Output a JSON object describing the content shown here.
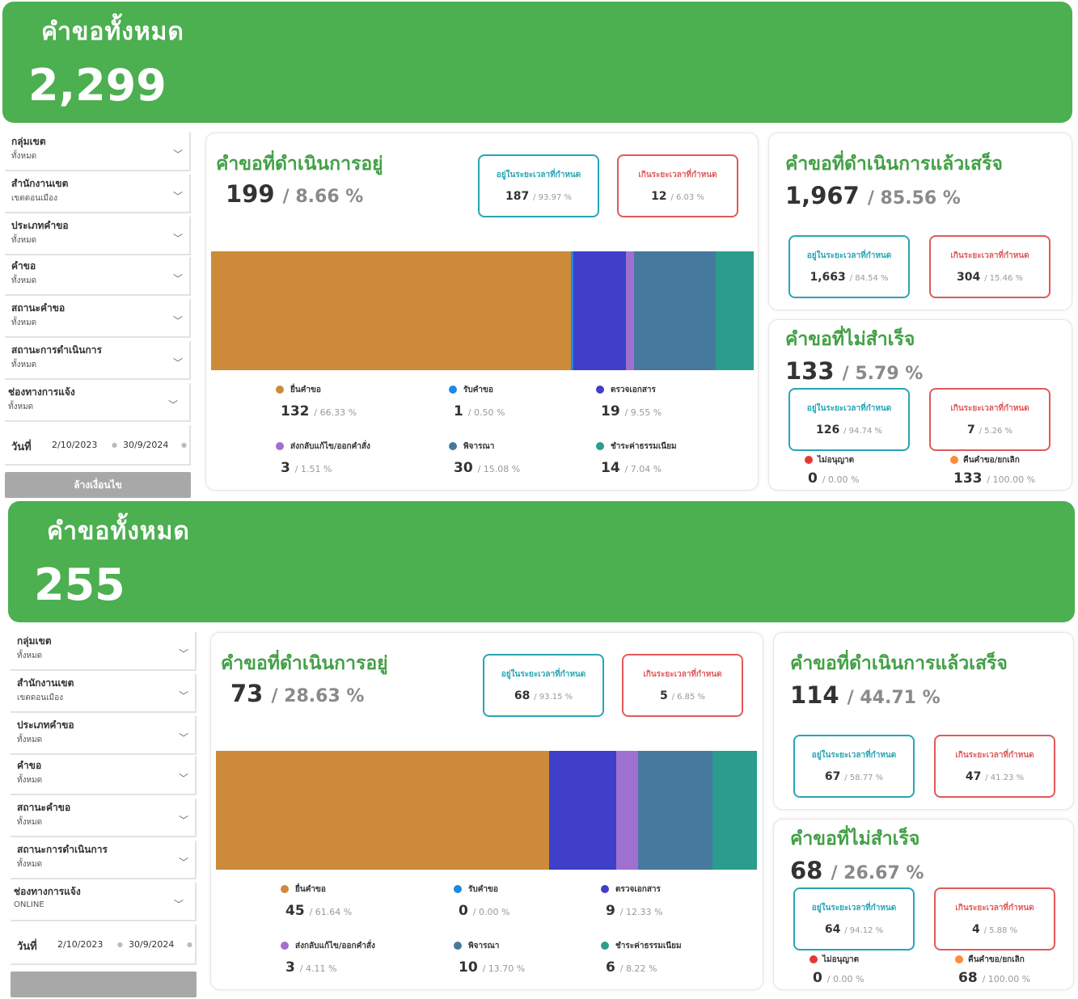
{
  "colors": {
    "banner": "#4caf50",
    "title_green": "#43a047",
    "teal": "#26a6b5",
    "red": "#e05a5a",
    "status": [
      "#cd8a3a",
      "#1e88e5",
      "#3f3fc9",
      "#a070d0",
      "#46799e",
      "#2a9d8f"
    ],
    "rejected_dot": "#e53935",
    "cancel_dot": "#fb8c3c"
  },
  "dashboards": [
    {
      "banner": {
        "title": "คำขอทั้งหมด",
        "total": "2,299"
      },
      "filters": [
        {
          "label": "กลุ่มเขต",
          "value": "ทั้งหมด"
        },
        {
          "label": "สำนักงานเขต",
          "value": "เขตดอนเมือง"
        },
        {
          "label": "ประเภทคำขอ",
          "value": "ทั้งหมด"
        },
        {
          "label": "คำขอ",
          "value": "ทั้งหมด"
        },
        {
          "label": "สถานะคำขอ",
          "value": "ทั้งหมด"
        },
        {
          "label": "สถานะการดำเนินการ",
          "value": "ทั้งหมด"
        },
        {
          "label": "ช่องทางการแจ้ง",
          "value": "ทั้งหมด"
        }
      ],
      "date": {
        "label": "วันที่",
        "from": "2/10/2023",
        "to": "30/9/2024"
      },
      "clear_label": "ล้างเงื่อนไข",
      "in_progress": {
        "title": "คำขอที่ดำเนินการอยู่",
        "count": "199",
        "percent": "/ 8.66 %",
        "within": {
          "label": "อยู่ในระยะเวลาที่กำหนด",
          "count": "187",
          "percent": "/ 93.97 %"
        },
        "over": {
          "label": "เกินระยะเวลาที่กำหนด",
          "count": "12",
          "percent": "/ 6.03 %"
        },
        "chart_data": {
          "type": "bar",
          "stacked": true,
          "orientation": "horizontal",
          "categories": [
            "ยื่นคำขอ",
            "รับคำขอ",
            "ตรวจเอกสาร",
            "ส่งกลับแก้ไข/ออกคำสั่ง",
            "พิจารณา",
            "ชำระค่าธรรมเนียม"
          ],
          "values": [
            132,
            1,
            19,
            3,
            30,
            14
          ],
          "percent_labels": [
            "/ 66.33 %",
            "/ 0.50 %",
            "/ 9.55 %",
            "/ 1.51 %",
            "/ 15.08 %",
            "/ 7.04 %"
          ]
        }
      },
      "completed": {
        "title": "คำขอที่ดำเนินการแล้วเสร็จ",
        "count": "1,967",
        "percent": "/ 85.56 %",
        "within": {
          "label": "อยู่ในระยะเวลาที่กำหนด",
          "count": "1,663",
          "percent": "/ 84.54 %"
        },
        "over": {
          "label": "เกินระยะเวลาที่กำหนด",
          "count": "304",
          "percent": "/ 15.46 %"
        }
      },
      "failed": {
        "title": "คำขอที่ไม่สำเร็จ",
        "count": "133",
        "percent": "/ 5.79 %",
        "within": {
          "label": "อยู่ในระยะเวลาที่กำหนด",
          "count": "126",
          "percent": "/ 94.74 %"
        },
        "over": {
          "label": "เกินระยะเวลาที่กำหนด",
          "count": "7",
          "percent": "/ 5.26 %"
        },
        "rejected": {
          "label": "ไม่อนุญาต",
          "count": "0",
          "percent": "/ 0.00 %"
        },
        "cancelled": {
          "label": "คืนคำขอ/ยกเลิก",
          "count": "133",
          "percent": "/ 100.00 %"
        }
      }
    },
    {
      "banner": {
        "title": "คำขอทั้งหมด",
        "total": "255"
      },
      "filters": [
        {
          "label": "กลุ่มเขต",
          "value": "ทั้งหมด"
        },
        {
          "label": "สำนักงานเขต",
          "value": "เขตดอนเมือง"
        },
        {
          "label": "ประเภทคำขอ",
          "value": "ทั้งหมด"
        },
        {
          "label": "คำขอ",
          "value": "ทั้งหมด"
        },
        {
          "label": "สถานะคำขอ",
          "value": "ทั้งหมด"
        },
        {
          "label": "สถานะการดำเนินการ",
          "value": "ทั้งหมด"
        },
        {
          "label": "ช่องทางการแจ้ง",
          "value": "ONLINE"
        }
      ],
      "date": {
        "label": "วันที่",
        "from": "2/10/2023",
        "to": "30/9/2024"
      },
      "clear_label": "",
      "in_progress": {
        "title": "คำขอที่ดำเนินการอยู่",
        "count": "73",
        "percent": "/ 28.63 %",
        "within": {
          "label": "อยู่ในระยะเวลาที่กำหนด",
          "count": "68",
          "percent": "/ 93.15 %"
        },
        "over": {
          "label": "เกินระยะเวลาที่กำหนด",
          "count": "5",
          "percent": "/ 6.85 %"
        },
        "chart_data": {
          "type": "bar",
          "stacked": true,
          "orientation": "horizontal",
          "categories": [
            "ยื่นคำขอ",
            "รับคำขอ",
            "ตรวจเอกสาร",
            "ส่งกลับแก้ไข/ออกคำสั่ง",
            "พิจารณา",
            "ชำระค่าธรรมเนียม"
          ],
          "values": [
            45,
            0,
            9,
            3,
            10,
            6
          ],
          "percent_labels": [
            "/ 61.64 %",
            "/ 0.00 %",
            "/ 12.33 %",
            "/ 4.11 %",
            "/ 13.70 %",
            "/ 8.22 %"
          ]
        }
      },
      "completed": {
        "title": "คำขอที่ดำเนินการแล้วเสร็จ",
        "count": "114",
        "percent": "/ 44.71 %",
        "within": {
          "label": "อยู่ในระยะเวลาที่กำหนด",
          "count": "67",
          "percent": "/ 58.77 %"
        },
        "over": {
          "label": "เกินระยะเวลาที่กำหนด",
          "count": "47",
          "percent": "/ 41.23 %"
        }
      },
      "failed": {
        "title": "คำขอที่ไม่สำเร็จ",
        "count": "68",
        "percent": "/ 26.67 %",
        "within": {
          "label": "อยู่ในระยะเวลาที่กำหนด",
          "count": "64",
          "percent": "/ 94.12 %"
        },
        "over": {
          "label": "เกินระยะเวลาที่กำหนด",
          "count": "4",
          "percent": "/ 5.88 %"
        },
        "rejected": {
          "label": "ไม่อนุญาต",
          "count": "0",
          "percent": "/ 0.00 %"
        },
        "cancelled": {
          "label": "คืนคำขอ/ยกเลิก",
          "count": "68",
          "percent": "/ 100.00 %"
        }
      }
    }
  ]
}
